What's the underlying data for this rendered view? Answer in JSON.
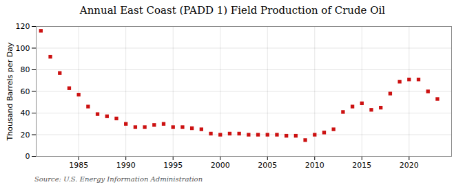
{
  "chart_data": {
    "type": "scatter",
    "title": "Annual East Coast (PADD 1) Field Production of Crude Oil",
    "ylabel": "Thousand Barrels per Day",
    "source": "Source: U.S. Energy Information Administration",
    "x": [
      1981,
      1982,
      1983,
      1984,
      1985,
      1986,
      1987,
      1988,
      1989,
      1990,
      1991,
      1992,
      1993,
      1994,
      1995,
      1996,
      1997,
      1998,
      1999,
      2000,
      2001,
      2002,
      2003,
      2004,
      2005,
      2006,
      2007,
      2008,
      2009,
      2010,
      2011,
      2012,
      2013,
      2014,
      2015,
      2016,
      2017,
      2018,
      2019,
      2020,
      2021,
      2022,
      2023
    ],
    "values": [
      116,
      92,
      77,
      63,
      57,
      46,
      39,
      37,
      35,
      30,
      27,
      27,
      29,
      30,
      27,
      27,
      26,
      25,
      21,
      20,
      21,
      21,
      20,
      20,
      20,
      20,
      19,
      19,
      15,
      20,
      22,
      25,
      41,
      46,
      49,
      43,
      45,
      58,
      69,
      71,
      71,
      60,
      53
    ],
    "color": "#cc1111",
    "marker": "square",
    "xlim": [
      1980.5,
      2024.5
    ],
    "xticks": [
      1985,
      1990,
      1995,
      2000,
      2005,
      2010,
      2015,
      2020
    ],
    "ylim": [
      0,
      120
    ],
    "yticks": [
      0,
      20,
      40,
      60,
      80,
      100,
      120
    ],
    "grid": true
  }
}
